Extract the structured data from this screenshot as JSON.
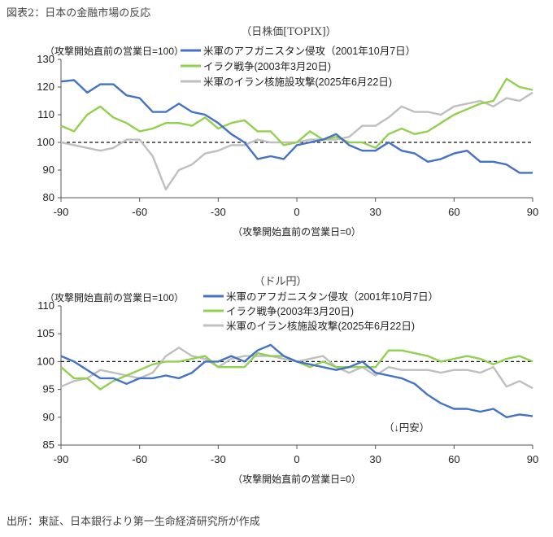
{
  "title": "図表2：日本の金融市場の反応",
  "footer": "出所：東証、日本銀行より第一生命経済研究所が作成",
  "chart_data": [
    {
      "type": "line",
      "title": "（日株価[TOPIX]）",
      "ylabel": "（攻撃開始直前の営業日=100）",
      "xlabel": "（攻撃開始直前の営業日=0）",
      "ylim": [
        80,
        130
      ],
      "yticks": [
        80,
        90,
        100,
        110,
        120,
        130
      ],
      "xlim": [
        -90,
        90
      ],
      "xticks": [
        -90,
        -60,
        -30,
        0,
        30,
        60,
        90
      ],
      "reference_line": 100,
      "legend_position": "top-right",
      "annotation": "",
      "x": [
        -90,
        -85,
        -80,
        -75,
        -70,
        -65,
        -60,
        -55,
        -50,
        -45,
        -40,
        -35,
        -30,
        -25,
        -20,
        -15,
        -10,
        -5,
        0,
        5,
        10,
        15,
        20,
        25,
        30,
        35,
        40,
        45,
        50,
        55,
        60,
        65,
        70,
        75,
        80,
        85,
        90
      ],
      "series": [
        {
          "name": "米軍のアフガニスタン侵攻（2001年10月7日）",
          "color": "#4472c4",
          "values": [
            122,
            122.5,
            118,
            121,
            121,
            117,
            116,
            111,
            111,
            114,
            111,
            110,
            107,
            103,
            100,
            94,
            95,
            94,
            99,
            100,
            101,
            103,
            99,
            97,
            97,
            100,
            97,
            96,
            93,
            94,
            96,
            97,
            93,
            93,
            92,
            89,
            89
          ]
        },
        {
          "name": "イラク戦争(2003年3月20日)",
          "color": "#92d050",
          "values": [
            106,
            104,
            110,
            113,
            109,
            107,
            104,
            105,
            107,
            107,
            106,
            109,
            105,
            107,
            108,
            104,
            104,
            99,
            100,
            104,
            101,
            102,
            100,
            100,
            98,
            103,
            105,
            103,
            104,
            107,
            110,
            112,
            114,
            115,
            123,
            120,
            119
          ]
        },
        {
          "name": "米軍のイラン核施設攻撃(2025年6月22日)",
          "color": "#bfbfbf",
          "values": [
            100,
            99,
            98,
            97,
            98,
            101,
            101,
            95,
            83,
            90,
            92,
            96,
            97,
            99,
            99,
            101,
            100,
            100,
            100,
            101,
            101,
            101,
            102,
            106,
            106,
            109,
            113,
            111,
            111,
            110,
            113,
            114,
            115,
            113,
            116,
            115,
            118
          ]
        }
      ]
    },
    {
      "type": "line",
      "title": "（ドル円）",
      "ylabel": "（攻撃開始直前の営業日=100）",
      "xlabel": "（攻撃開始直前の営業日=0）",
      "ylim": [
        85,
        110
      ],
      "yticks": [
        85,
        90,
        95,
        100,
        105,
        110
      ],
      "xlim": [
        -90,
        90
      ],
      "xticks": [
        -90,
        -60,
        -30,
        0,
        30,
        60,
        90
      ],
      "reference_line": 100,
      "legend_position": "top-right",
      "annotation": "（↓円安）",
      "x": [
        -90,
        -85,
        -80,
        -75,
        -70,
        -65,
        -60,
        -55,
        -50,
        -45,
        -40,
        -35,
        -30,
        -25,
        -20,
        -15,
        -10,
        -5,
        0,
        5,
        10,
        15,
        20,
        25,
        30,
        35,
        40,
        45,
        50,
        55,
        60,
        65,
        70,
        75,
        80,
        85,
        90
      ],
      "series": [
        {
          "name": "米軍のアフガニスタン侵攻（2001年10月7日）",
          "color": "#4472c4",
          "values": [
            101,
            100,
            98.5,
            97,
            97,
            96,
            97,
            97,
            97.5,
            97,
            98,
            100,
            100,
            101,
            100,
            102,
            103,
            101,
            100,
            99.5,
            99,
            98.5,
            99,
            100,
            98,
            97.5,
            97,
            96,
            94,
            92.5,
            91.5,
            91.5,
            91,
            91.5,
            90,
            90.5,
            90.2
          ]
        },
        {
          "name": "イラク戦争(2003年3月20日)",
          "color": "#92d050",
          "values": [
            99,
            97,
            97,
            95,
            96.5,
            97.5,
            98.5,
            99.5,
            100,
            100,
            100.5,
            101,
            99,
            99,
            99,
            101.5,
            101,
            101,
            100,
            99,
            100,
            99,
            99,
            99,
            99,
            102,
            102,
            101.5,
            101,
            100,
            100.5,
            101,
            100.5,
            99.5,
            100.5,
            101,
            100
          ]
        },
        {
          "name": "米軍のイラン核施設攻撃(2025年6月22日)",
          "color": "#bfbfbf",
          "values": [
            95.5,
            96.5,
            97,
            98.5,
            98,
            97.5,
            97,
            98,
            101,
            102.5,
            101,
            100.5,
            99,
            100.5,
            101,
            101,
            101,
            100.5,
            100,
            100.5,
            101,
            99,
            98,
            99,
            97.5,
            99,
            98.5,
            98.5,
            98.5,
            98,
            98.5,
            98.5,
            98,
            99,
            95.5,
            96.5,
            95.2
          ]
        }
      ]
    }
  ]
}
